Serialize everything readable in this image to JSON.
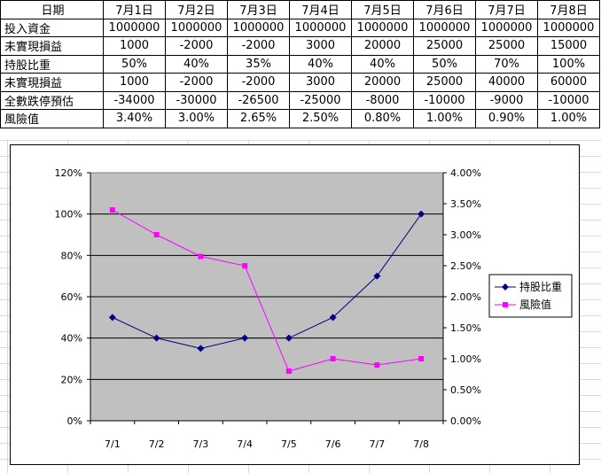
{
  "table": {
    "headers": [
      "日期",
      "7月1日",
      "7月2日",
      "7月3日",
      "7月4日",
      "7月5日",
      "7月6日",
      "7月7日",
      "7月8日"
    ],
    "rows": [
      {
        "label": "投入資金",
        "cells": [
          "1000000",
          "1000000",
          "1000000",
          "1000000",
          "1000000",
          "1000000",
          "1000000",
          "1000000"
        ]
      },
      {
        "label": "未實現損益",
        "cells": [
          "1000",
          "-2000",
          "-2000",
          "3000",
          "20000",
          "25000",
          "25000",
          "15000"
        ]
      },
      {
        "label": "持股比重",
        "cells": [
          "50%",
          "40%",
          "35%",
          "40%",
          "40%",
          "50%",
          "70%",
          "100%"
        ]
      },
      {
        "label": "未實現損益",
        "cells": [
          "1000",
          "-2000",
          "-2000",
          "3000",
          "20000",
          "25000",
          "40000",
          "60000"
        ]
      },
      {
        "label": "全數跌停預估",
        "cells": [
          "-34000",
          "-30000",
          "-26500",
          "-25000",
          "-8000",
          "-10000",
          "-9000",
          "-10000"
        ]
      },
      {
        "label": "風險值",
        "cells": [
          "3.40%",
          "3.00%",
          "2.65%",
          "2.50%",
          "0.80%",
          "1.00%",
          "0.90%",
          "1.00%"
        ]
      }
    ]
  },
  "chart_data": {
    "type": "line",
    "categories": [
      "7/1",
      "7/2",
      "7/3",
      "7/4",
      "7/5",
      "7/6",
      "7/7",
      "7/8"
    ],
    "series": [
      {
        "name": "持股比重",
        "axis": "left",
        "color": "#000080",
        "marker": "diamond",
        "values": [
          50,
          40,
          35,
          40,
          40,
          50,
          70,
          100
        ]
      },
      {
        "name": "風險值",
        "axis": "right",
        "color": "#ff00ff",
        "marker": "square",
        "values": [
          3.4,
          3.0,
          2.65,
          2.5,
          0.8,
          1.0,
          0.9,
          1.0
        ]
      }
    ],
    "y_left": {
      "min": 0,
      "max": 120,
      "step": 20,
      "ticks": [
        "0%",
        "20%",
        "40%",
        "60%",
        "80%",
        "100%",
        "120%"
      ]
    },
    "y_right": {
      "min": 0,
      "max": 4,
      "step": 0.5,
      "ticks": [
        "0.00%",
        "0.50%",
        "1.00%",
        "1.50%",
        "2.00%",
        "2.50%",
        "3.00%",
        "3.50%",
        "4.00%"
      ]
    },
    "plot_background": "#c0c0c0",
    "grid": true,
    "legend_position": "right"
  }
}
